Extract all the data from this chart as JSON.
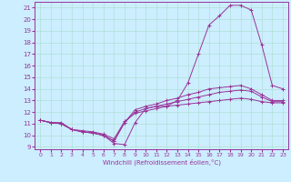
{
  "xlabel": "Windchill (Refroidissement éolien,°C)",
  "bg_color": "#cceeff",
  "line_color": "#993399",
  "grid_color": "#aaddcc",
  "xmin": -0.5,
  "xmax": 23.5,
  "ymin": 8.8,
  "ymax": 21.5,
  "xticks": [
    0,
    1,
    2,
    3,
    4,
    5,
    6,
    7,
    8,
    9,
    10,
    11,
    12,
    13,
    14,
    15,
    16,
    17,
    18,
    19,
    20,
    21,
    22,
    23
  ],
  "yticks": [
    9,
    10,
    11,
    12,
    13,
    14,
    15,
    16,
    17,
    18,
    19,
    20,
    21
  ],
  "line1_y": [
    11.3,
    11.1,
    11.1,
    10.5,
    10.3,
    10.2,
    10.0,
    9.3,
    9.2,
    11.1,
    12.3,
    12.5,
    12.5,
    13.0,
    14.5,
    17.0,
    19.5,
    20.3,
    21.2,
    21.2,
    20.8,
    17.8,
    14.3,
    14.0
  ],
  "line2_y": [
    11.3,
    11.1,
    11.0,
    10.5,
    10.3,
    10.2,
    10.0,
    9.5,
    11.1,
    12.2,
    12.5,
    12.7,
    13.0,
    13.2,
    13.5,
    13.7,
    14.0,
    14.1,
    14.2,
    14.3,
    14.0,
    13.5,
    13.0,
    13.0
  ],
  "line3_y": [
    11.3,
    11.1,
    11.0,
    10.5,
    10.3,
    10.2,
    10.0,
    9.5,
    11.1,
    12.0,
    12.3,
    12.5,
    12.7,
    12.9,
    13.1,
    13.3,
    13.5,
    13.7,
    13.8,
    13.9,
    13.8,
    13.3,
    12.9,
    12.9
  ],
  "line4_y": [
    11.3,
    11.1,
    11.0,
    10.5,
    10.4,
    10.3,
    10.1,
    9.7,
    11.2,
    11.9,
    12.1,
    12.3,
    12.5,
    12.6,
    12.7,
    12.8,
    12.9,
    13.0,
    13.1,
    13.2,
    13.1,
    12.9,
    12.8,
    12.8
  ]
}
